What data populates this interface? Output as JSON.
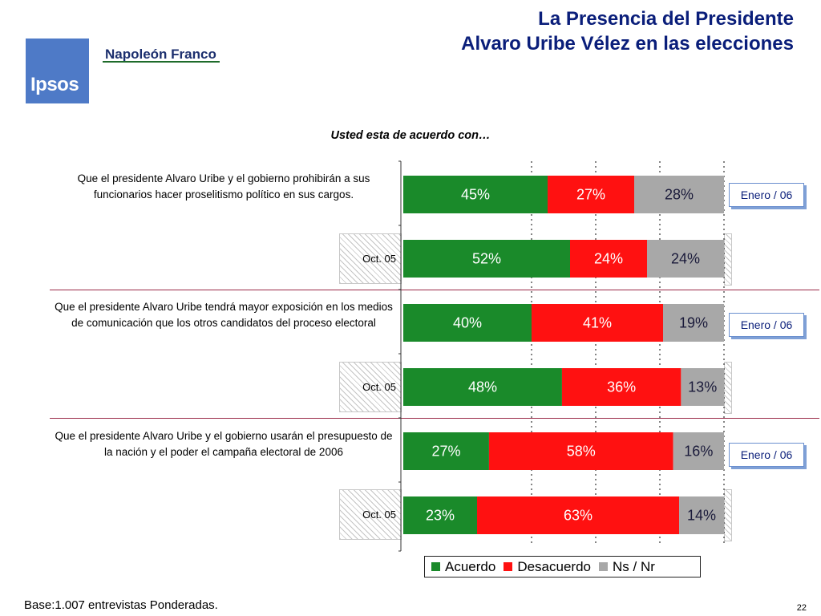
{
  "header": {
    "title_line1": "La Presencia del Presidente",
    "title_line2": "Alvaro Uribe Vélez en las elecciones",
    "logo_text": "Ipsos",
    "brand_name": "Napoleón Franco"
  },
  "colors": {
    "acuerdo": "#1a8a2a",
    "desacuerdo": "#ff1111",
    "nsnr": "#a8a8a8",
    "title": "#0a1e7a",
    "separator": "#9a2a48"
  },
  "chart_data": {
    "type": "bar",
    "stacked": true,
    "orientation": "horizontal",
    "title": "Usted esta de acuerdo con…",
    "series_names": [
      "Acuerdo",
      "Desacuerdo",
      "Ns / Nr"
    ],
    "xlim": [
      0,
      100
    ],
    "grid": "dotted vertical",
    "legend": "bottom",
    "items": [
      {
        "statement": "Que  el presidente Alvaro Uribe y el gobierno prohibirán a sus funcionarios hacer proselitismo político en sus cargos.",
        "rows": [
          {
            "period": "Enero / 06",
            "values": [
              45,
              27,
              28
            ],
            "labels": [
              "45%",
              "27%",
              "28%"
            ]
          },
          {
            "period": "Oct. 05",
            "values": [
              52,
              24,
              24
            ],
            "labels": [
              "52%",
              "24%",
              "24%"
            ]
          }
        ]
      },
      {
        "statement": "Que el presidente Alvaro Uribe tendrá mayor exposición en los medios de comunicación que los otros candidatos del proceso electoral",
        "rows": [
          {
            "period": "Enero / 06",
            "values": [
              40,
              41,
              19
            ],
            "labels": [
              "40%",
              "41%",
              "19%"
            ]
          },
          {
            "period": "Oct. 05",
            "values": [
              48,
              36,
              13
            ],
            "labels": [
              "48%",
              "36%",
              "13%"
            ]
          }
        ]
      },
      {
        "statement": "Que el presidente Alvaro Uribe y el gobierno usarán el presupuesto de la nación y el poder el campaña electoral de 2006",
        "rows": [
          {
            "period": "Enero / 06",
            "values": [
              27,
              58,
              16
            ],
            "labels": [
              "27%",
              "58%",
              "16%"
            ]
          },
          {
            "period": "Oct. 05",
            "values": [
              23,
              63,
              14
            ],
            "labels": [
              "23%",
              "63%",
              "14%"
            ]
          }
        ]
      }
    ]
  },
  "footer": {
    "base": "Base:1.007 entrevistas Ponderadas.",
    "page": "22"
  }
}
